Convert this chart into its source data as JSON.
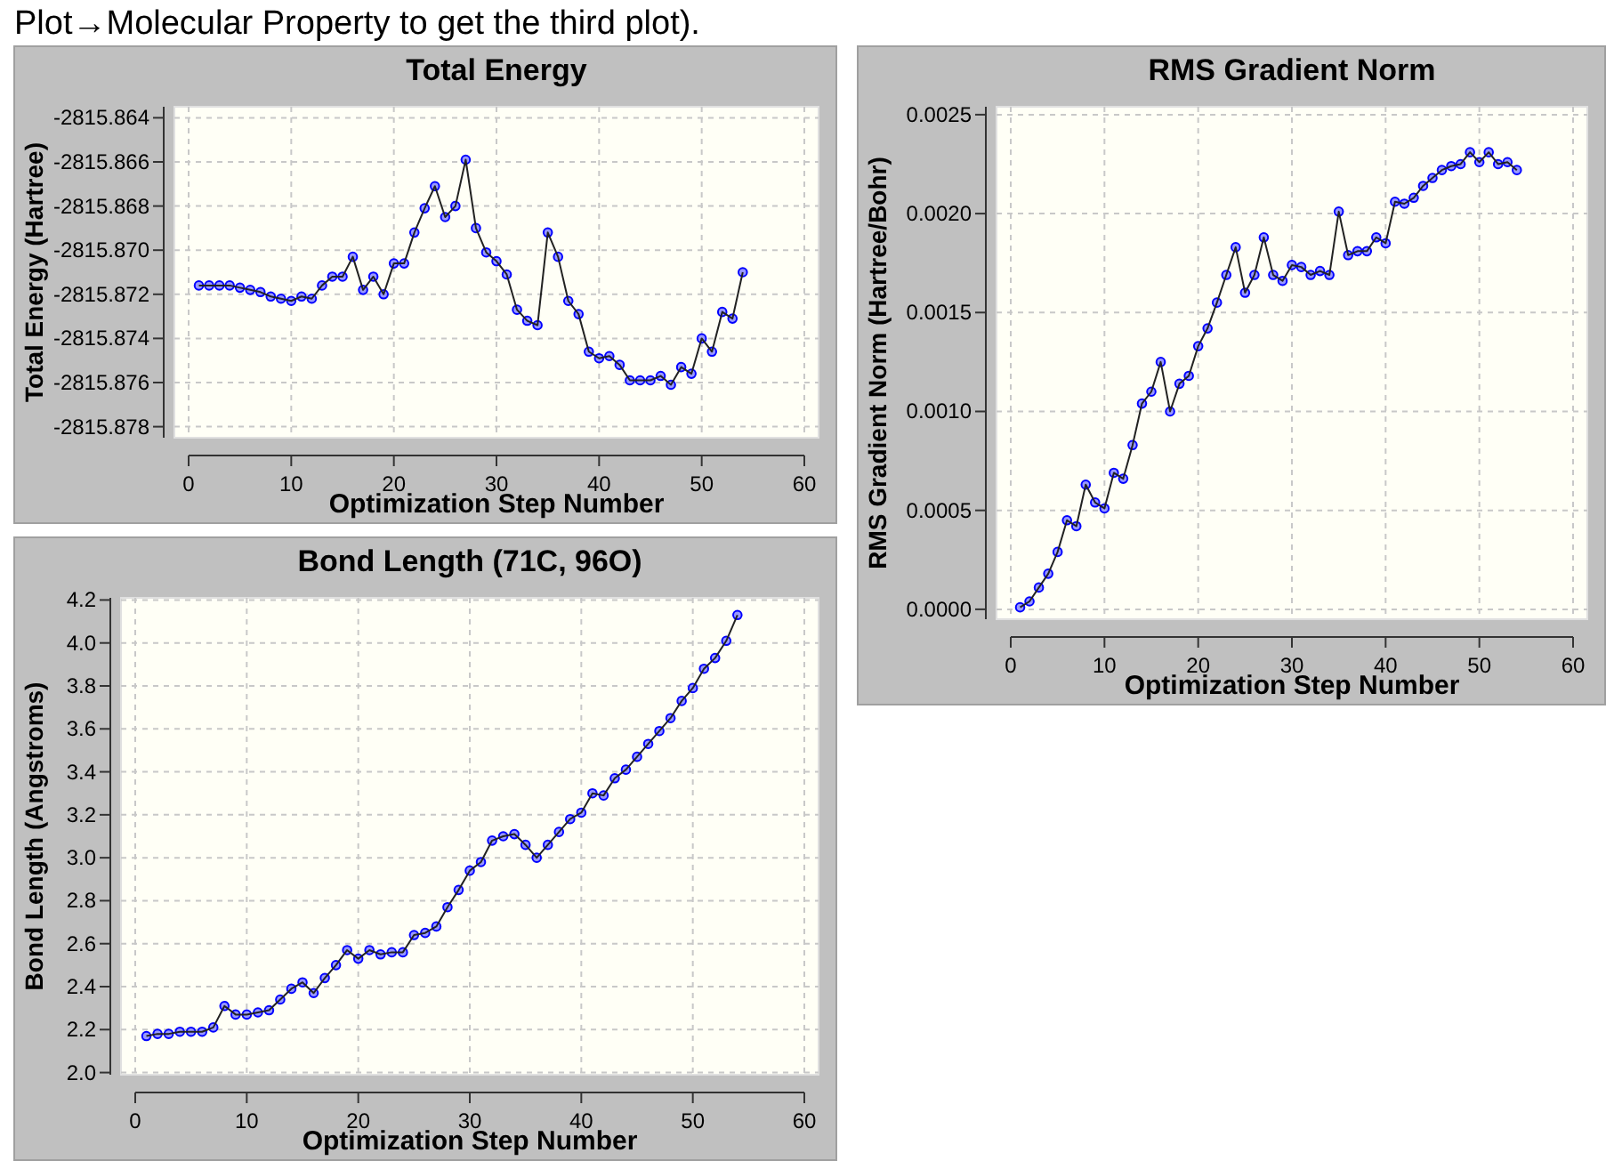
{
  "chart_data": [
    {
      "type": "line",
      "title": "Total Energy",
      "xlabel": "Optimization Step Number",
      "ylabel": "Total Energy (Hartree)",
      "annotations": [
        "Plot→Molecular Property to get the third plot)."
      ],
      "x": [
        1,
        2,
        3,
        4,
        5,
        6,
        7,
        8,
        9,
        10,
        11,
        12,
        13,
        14,
        15,
        16,
        17,
        18,
        19,
        20,
        21,
        22,
        23,
        24,
        25,
        26,
        27,
        28,
        29,
        30,
        31,
        32,
        33,
        34,
        35,
        36,
        37,
        38,
        39,
        40,
        41,
        42,
        43,
        44,
        45,
        46,
        47,
        48,
        49,
        50,
        51,
        52,
        53,
        54
      ],
      "series": [
        {
          "color": "#0000ff",
          "values": [
            -2815.8716,
            -2815.8716,
            -2815.8716,
            -2815.8716,
            -2815.8717,
            -2815.8718,
            -2815.8719,
            -2815.8721,
            -2815.8722,
            -2815.8723,
            -2815.8721,
            -2815.8722,
            -2815.8716,
            -2815.8712,
            -2815.8712,
            -2815.8703,
            -2815.8718,
            -2815.8712,
            -2815.872,
            -2815.8706,
            -2815.8706,
            -2815.8692,
            -2815.8681,
            -2815.8671,
            -2815.8685,
            -2815.868,
            -2815.8659,
            -2815.869,
            -2815.8701,
            -2815.8705,
            -2815.8711,
            -2815.8727,
            -2815.8732,
            -2815.8734,
            -2815.8692,
            -2815.8703,
            -2815.8723,
            -2815.8729,
            -2815.8746,
            -2815.8749,
            -2815.8748,
            -2815.8752,
            -2815.8759,
            -2815.8759,
            -2815.8759,
            -2815.8757,
            -2815.8761,
            -2815.8753,
            -2815.8756,
            -2815.874,
            -2815.8746,
            -2815.8728,
            -2815.8731,
            -2815.871
          ]
        }
      ],
      "xlim": [
        0,
        60
      ],
      "xticks": [
        0,
        10,
        20,
        30,
        40,
        50,
        60
      ],
      "ylim": [
        -2815.8785,
        -2815.8635
      ],
      "yticks": [
        {
          "value": -2815.864,
          "label": "-2815.864"
        },
        {
          "value": -2815.866,
          "label": "-2815.866"
        },
        {
          "value": -2815.868,
          "label": "-2815.868"
        },
        {
          "value": -2815.87,
          "label": "-2815.870"
        },
        {
          "value": -2815.872,
          "label": "-2815.872"
        },
        {
          "value": -2815.874,
          "label": "-2815.874"
        },
        {
          "value": -2815.876,
          "label": "-2815.876"
        },
        {
          "value": -2815.878,
          "label": "-2815.878"
        }
      ],
      "grid": true,
      "marker": "circle",
      "line_style": "solid"
    },
    {
      "type": "line",
      "title": "RMS Gradient Norm",
      "xlabel": "Optimization Step Number",
      "ylabel": "RMS Gradient Norm (Hartree/Bohr)",
      "x": [
        1,
        2,
        3,
        4,
        5,
        6,
        7,
        8,
        9,
        10,
        11,
        12,
        13,
        14,
        15,
        16,
        17,
        18,
        19,
        20,
        21,
        22,
        23,
        24,
        25,
        26,
        27,
        28,
        29,
        30,
        31,
        32,
        33,
        34,
        35,
        36,
        37,
        38,
        39,
        40,
        41,
        42,
        43,
        44,
        45,
        46,
        47,
        48,
        49,
        50,
        51,
        52,
        53,
        54
      ],
      "series": [
        {
          "color": "#0000ff",
          "values": [
            1e-05,
            4e-05,
            0.00011,
            0.00018,
            0.00029,
            0.00045,
            0.00042,
            0.00063,
            0.00054,
            0.00051,
            0.00069,
            0.00066,
            0.00083,
            0.00104,
            0.0011,
            0.00125,
            0.001,
            0.00114,
            0.00118,
            0.00133,
            0.00142,
            0.00155,
            0.00169,
            0.00183,
            0.0016,
            0.00169,
            0.00188,
            0.00169,
            0.00166,
            0.00174,
            0.00173,
            0.00169,
            0.00171,
            0.00169,
            0.00201,
            0.00179,
            0.00181,
            0.00181,
            0.00188,
            0.00185,
            0.00206,
            0.00205,
            0.00208,
            0.00214,
            0.00218,
            0.00222,
            0.00224,
            0.00225,
            0.00231,
            0.00226,
            0.00231,
            0.00225,
            0.00226,
            0.00222
          ]
        }
      ],
      "xlim": [
        0,
        60
      ],
      "xticks": [
        0,
        10,
        20,
        30,
        40,
        50,
        60
      ],
      "ylim": [
        -5e-05,
        0.00254
      ],
      "yticks": [
        {
          "value": 0,
          "label": "0.0000"
        },
        {
          "value": 0.0005,
          "label": "0.0005"
        },
        {
          "value": 0.001,
          "label": "0.0010"
        },
        {
          "value": 0.0015,
          "label": "0.0015"
        },
        {
          "value": 0.002,
          "label": "0.0020"
        },
        {
          "value": 0.0025,
          "label": "0.0025"
        }
      ],
      "grid": true,
      "marker": "circle",
      "line_style": "solid"
    },
    {
      "type": "line",
      "title": "Bond Length (71C, 96O)",
      "xlabel": "Optimization Step Number",
      "ylabel": "Bond Length (Angstroms)",
      "x": [
        1,
        2,
        3,
        4,
        5,
        6,
        7,
        8,
        9,
        10,
        11,
        12,
        13,
        14,
        15,
        16,
        17,
        18,
        19,
        20,
        21,
        22,
        23,
        24,
        25,
        26,
        27,
        28,
        29,
        30,
        31,
        32,
        33,
        34,
        35,
        36,
        37,
        38,
        39,
        40,
        41,
        42,
        43,
        44,
        45,
        46,
        47,
        48,
        49,
        50,
        51,
        52,
        53,
        54
      ],
      "series": [
        {
          "color": "#0000ff",
          "values": [
            2.17,
            2.18,
            2.18,
            2.19,
            2.19,
            2.19,
            2.21,
            2.31,
            2.27,
            2.27,
            2.28,
            2.29,
            2.34,
            2.39,
            2.42,
            2.37,
            2.44,
            2.5,
            2.57,
            2.53,
            2.57,
            2.55,
            2.56,
            2.56,
            2.64,
            2.65,
            2.68,
            2.77,
            2.85,
            2.94,
            2.98,
            3.08,
            3.1,
            3.11,
            3.06,
            3,
            3.06,
            3.12,
            3.18,
            3.21,
            3.3,
            3.29,
            3.37,
            3.41,
            3.47,
            3.53,
            3.59,
            3.65,
            3.73,
            3.79,
            3.88,
            3.93,
            4.01,
            4.13
          ]
        }
      ],
      "xlim": [
        0,
        60
      ],
      "xticks": [
        0,
        10,
        20,
        30,
        40,
        50,
        60
      ],
      "ylim": [
        1.99,
        4.21
      ],
      "yticks": [
        {
          "value": 2,
          "label": "2.0"
        },
        {
          "value": 2.2,
          "label": "2.2"
        },
        {
          "value": 2.4,
          "label": "2.4"
        },
        {
          "value": 2.6,
          "label": "2.6"
        },
        {
          "value": 2.8,
          "label": "2.8"
        },
        {
          "value": 3,
          "label": "3.0"
        },
        {
          "value": 3.2,
          "label": "3.2"
        },
        {
          "value": 3.4,
          "label": "3.4"
        },
        {
          "value": 3.6,
          "label": "3.6"
        },
        {
          "value": 3.8,
          "label": "3.8"
        },
        {
          "value": 4,
          "label": "4.0"
        },
        {
          "value": 4.2,
          "label": "4.2"
        }
      ],
      "grid": true,
      "marker": "circle",
      "line_style": "solid"
    }
  ]
}
